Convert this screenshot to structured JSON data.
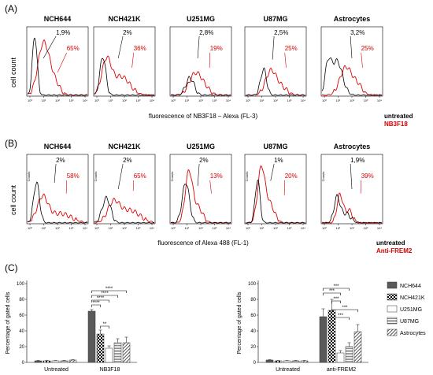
{
  "panels": {
    "a": "(A)",
    "b": "(B)",
    "c": "(C)"
  },
  "histograms": {
    "ylabel": "cell count",
    "row_a": {
      "xtitle": "fluorescence of NB3F18 – Alexa (FL-3)",
      "legend_untreated": "untreated",
      "legend_treated": "NB3F18",
      "cells": [
        {
          "title": "NCH644",
          "untreated_pct": "1,9%",
          "treated_pct": "65%"
        },
        {
          "title": "NCH421K",
          "untreated_pct": "2%",
          "treated_pct": "36%"
        },
        {
          "title": "U251MG",
          "untreated_pct": "2,8%",
          "treated_pct": "19%"
        },
        {
          "title": "U87MG",
          "untreated_pct": "2,5%",
          "treated_pct": "25%"
        },
        {
          "title": "Astrocytes",
          "untreated_pct": "3,2%",
          "treated_pct": "25%"
        }
      ]
    },
    "row_b": {
      "xtitle": "fluorescence of Alexa 488 (FL-1)",
      "legend_untreated": "untreated",
      "legend_treated": "Anti-FREM2",
      "inner_ylabel": "Counts",
      "cells": [
        {
          "title": "NCH644",
          "untreated_pct": "2%",
          "treated_pct": "58%"
        },
        {
          "title": "NCH421K",
          "untreated_pct": "2%",
          "treated_pct": "65%"
        },
        {
          "title": "U251MG",
          "untreated_pct": "2%",
          "treated_pct": "13%"
        },
        {
          "title": "U87MG",
          "untreated_pct": "1%",
          "treated_pct": "20%"
        },
        {
          "title": "Astrocytes",
          "untreated_pct": "1,9%",
          "treated_pct": "39%"
        }
      ]
    },
    "xticks": [
      "10⁰",
      "10¹",
      "10²",
      "10³",
      "10⁴"
    ],
    "colors": {
      "untreated": "#000000",
      "treated": "#e00000"
    }
  },
  "chart_data": [
    {
      "type": "bar",
      "ylabel": "Percentage of gated cells",
      "ylim": [
        0,
        100
      ],
      "yticks": [
        0,
        20,
        40,
        60,
        80,
        100
      ],
      "categories": [
        "Untreated",
        "NB3F18"
      ],
      "series": [
        {
          "name": "NCH644",
          "values": [
            2,
            65
          ],
          "errors": [
            0.5,
            2
          ]
        },
        {
          "name": "NCH421K",
          "values": [
            2,
            36
          ],
          "errors": [
            0.5,
            5
          ]
        },
        {
          "name": "U251MG",
          "values": [
            2,
            18
          ],
          "errors": [
            0.5,
            3
          ]
        },
        {
          "name": "U87MG",
          "values": [
            2,
            25
          ],
          "errors": [
            0.5,
            5
          ]
        },
        {
          "name": "Astrocytes",
          "values": [
            3,
            25
          ],
          "errors": [
            0.5,
            7
          ]
        }
      ],
      "significance": [
        {
          "from": "NCH644",
          "to": "NCH421K",
          "label": "****",
          "y": 73
        },
        {
          "from": "NCH644",
          "to": "U251MG",
          "label": "****",
          "y": 79
        },
        {
          "from": "NCH644",
          "to": "U87MG",
          "label": "****",
          "y": 85
        },
        {
          "from": "NCH644",
          "to": "Astrocytes",
          "label": "****",
          "y": 91
        },
        {
          "from": "NCH421K",
          "to": "U251MG",
          "label": "**",
          "y": 46
        }
      ]
    },
    {
      "type": "bar",
      "ylabel": "Percentage of gated cells",
      "ylim": [
        0,
        100
      ],
      "yticks": [
        0,
        20,
        40,
        60,
        80,
        100
      ],
      "categories": [
        "Untreated",
        "anti-FREM2"
      ],
      "series": [
        {
          "name": "NCH644",
          "values": [
            3,
            58
          ],
          "errors": [
            0.5,
            10
          ]
        },
        {
          "name": "NCH421K",
          "values": [
            2,
            66
          ],
          "errors": [
            0.5,
            14
          ]
        },
        {
          "name": "U251MG",
          "values": [
            2,
            12
          ],
          "errors": [
            0.5,
            3
          ]
        },
        {
          "name": "U87MG",
          "values": [
            2,
            20
          ],
          "errors": [
            0.5,
            5
          ]
        },
        {
          "name": "Astrocytes",
          "values": [
            2,
            39
          ],
          "errors": [
            0.5,
            9
          ]
        }
      ],
      "significance": [
        {
          "from": "NCH644",
          "to": "U251MG",
          "label": "***",
          "y": 88
        },
        {
          "from": "NCH644",
          "to": "U87MG",
          "label": "***",
          "y": 94
        },
        {
          "from": "NCH421K",
          "to": "U251MG",
          "label": "***",
          "y": 78
        },
        {
          "from": "NCH421K",
          "to": "Astrocytes",
          "label": "***",
          "y": 67
        },
        {
          "from": "NCH421K",
          "to": "U87MG",
          "label": "***",
          "y": 57
        }
      ]
    }
  ],
  "legend": {
    "items": [
      "NCH644",
      "NCH421K",
      "U251MG",
      "U87MG",
      "Astrocytes"
    ]
  }
}
